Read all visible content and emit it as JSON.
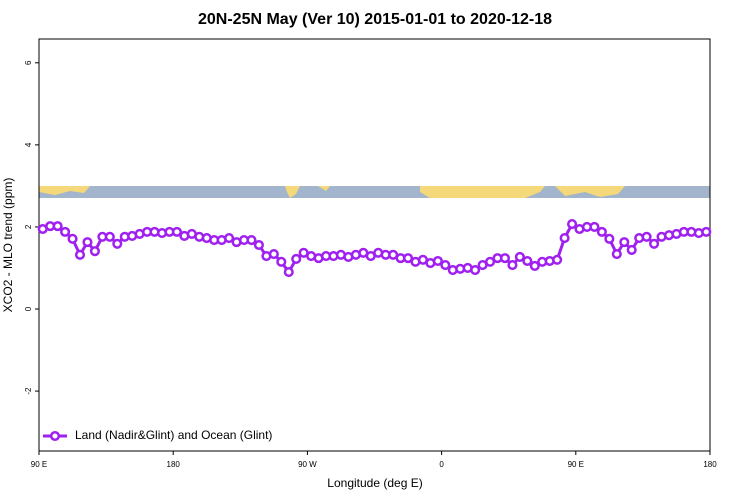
{
  "chart_data": {
    "type": "line",
    "title": "20N-25N May (Ver 10)   2015-01-01 to 2020-12-18",
    "x_label": "Longitude (deg E)",
    "y_label": "XCO2 - MLO trend (ppm)",
    "xlim": [
      90,
      540
    ],
    "xticks": [
      {
        "value": 90,
        "label": "90 E"
      },
      {
        "value": 180,
        "label": "180"
      },
      {
        "value": 270,
        "label": "90 W"
      },
      {
        "value": 360,
        "label": "0"
      },
      {
        "value": 450,
        "label": "90 E"
      },
      {
        "value": 540,
        "label": "180"
      }
    ],
    "ylim": [
      -3.46,
      6.58
    ],
    "yticks": [
      -2,
      0,
      2,
      4,
      6
    ],
    "legend": "bottom-left",
    "x": [
      92.5,
      97.5,
      102.5,
      107.5,
      112.5,
      117.5,
      122.5,
      127.5,
      132.5,
      137.5,
      142.5,
      147.5,
      152.5,
      157.5,
      162.5,
      167.5,
      172.5,
      177.5,
      182.5,
      187.5,
      192.5,
      197.5,
      202.5,
      207.5,
      212.5,
      217.5,
      222.5,
      227.5,
      232.5,
      237.5,
      242.5,
      247.5,
      252.5,
      257.5,
      262.5,
      267.5,
      272.5,
      277.5,
      282.5,
      287.5,
      292.5,
      297.5,
      302.5,
      307.5,
      312.5,
      317.5,
      322.5,
      327.5,
      332.5,
      337.5,
      342.5,
      347.5,
      352.5,
      357.5,
      362.5,
      367.5,
      372.5,
      377.5,
      382.5,
      387.5,
      392.5,
      397.5,
      402.5,
      407.5,
      412.5,
      417.5,
      422.5,
      427.5,
      432.5,
      437.5,
      442.5,
      447.5,
      452.5,
      457.5,
      462.5,
      467.5,
      472.5,
      477.5,
      482.5,
      487.5,
      492.5,
      497.5,
      502.5,
      507.5,
      512.5,
      517.5,
      522.5,
      527.5,
      532.5,
      537.5
    ],
    "series": [
      {
        "name": "Land (Nadir&Glint) and Ocean (Glint)",
        "color": "#a020f0",
        "values": [
          1.95,
          2.02,
          2.02,
          1.88,
          1.71,
          1.32,
          1.63,
          1.41,
          1.76,
          1.76,
          1.59,
          1.76,
          1.78,
          1.83,
          1.88,
          1.88,
          1.85,
          1.88,
          1.88,
          1.78,
          1.83,
          1.76,
          1.73,
          1.68,
          1.68,
          1.73,
          1.63,
          1.68,
          1.68,
          1.56,
          1.29,
          1.34,
          1.15,
          0.9,
          1.22,
          1.37,
          1.29,
          1.24,
          1.29,
          1.29,
          1.32,
          1.27,
          1.32,
          1.37,
          1.29,
          1.37,
          1.32,
          1.32,
          1.24,
          1.24,
          1.15,
          1.2,
          1.12,
          1.17,
          1.07,
          0.95,
          0.98,
          1.0,
          0.95,
          1.07,
          1.15,
          1.24,
          1.24,
          1.07,
          1.27,
          1.17,
          1.05,
          1.15,
          1.17,
          1.2,
          1.73,
          2.07,
          1.95,
          2.0,
          2.0,
          1.88,
          1.71,
          1.34,
          1.63,
          1.44,
          1.73,
          1.76,
          1.59,
          1.76,
          1.8,
          1.83,
          1.88,
          1.88,
          1.85,
          1.88
        ]
      }
    ]
  }
}
